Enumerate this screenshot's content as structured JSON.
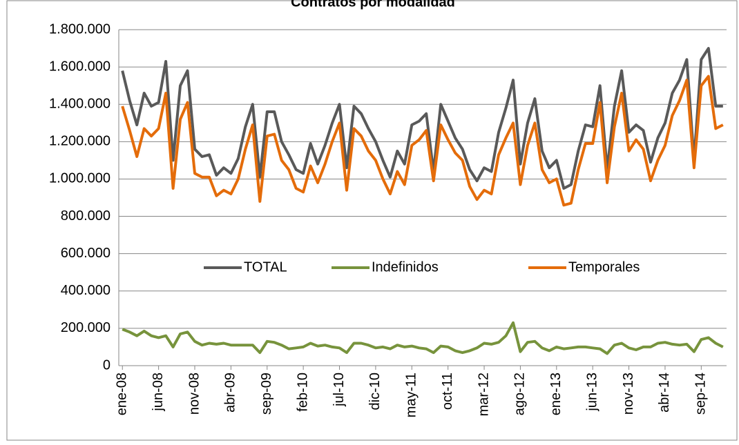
{
  "chart_data": {
    "type": "line",
    "title": "Contratos por modalidad",
    "categories": [
      "ene-08",
      null,
      null,
      null,
      null,
      "jun-08",
      null,
      null,
      null,
      null,
      "nov-08",
      null,
      null,
      null,
      null,
      "abr-09",
      null,
      null,
      null,
      null,
      "sep-09",
      null,
      null,
      null,
      null,
      "feb-10",
      null,
      null,
      null,
      null,
      "jul-10",
      null,
      null,
      null,
      null,
      "dic-10",
      null,
      null,
      null,
      null,
      "may-11",
      null,
      null,
      null,
      null,
      "oct-11",
      null,
      null,
      null,
      null,
      "mar-12",
      null,
      null,
      null,
      null,
      "ago-12",
      null,
      null,
      null,
      null,
      "ene-13",
      null,
      null,
      null,
      null,
      "jun-13",
      null,
      null,
      null,
      null,
      "nov-13",
      null,
      null,
      null,
      null,
      "abr-14",
      null,
      null,
      null,
      null,
      "sep-14",
      null,
      null,
      null
    ],
    "series": [
      {
        "name": "TOTAL",
        "color": "#595959",
        "values": [
          1580000,
          1420000,
          1290000,
          1460000,
          1390000,
          1410000,
          1630000,
          1100000,
          1500000,
          1580000,
          1160000,
          1120000,
          1130000,
          1020000,
          1060000,
          1030000,
          1110000,
          1280000,
          1400000,
          1010000,
          1360000,
          1360000,
          1200000,
          1130000,
          1050000,
          1030000,
          1190000,
          1080000,
          1180000,
          1300000,
          1400000,
          1060000,
          1390000,
          1350000,
          1270000,
          1200000,
          1100000,
          1010000,
          1150000,
          1080000,
          1290000,
          1310000,
          1350000,
          1040000,
          1400000,
          1310000,
          1220000,
          1160000,
          1050000,
          990000,
          1060000,
          1040000,
          1250000,
          1380000,
          1530000,
          1080000,
          1300000,
          1430000,
          1150000,
          1060000,
          1100000,
          950000,
          970000,
          1150000,
          1290000,
          1280000,
          1500000,
          1050000,
          1390000,
          1580000,
          1250000,
          1290000,
          1260000,
          1090000,
          1220000,
          1300000,
          1460000,
          1530000,
          1640000,
          1100000,
          1640000,
          1700000,
          1390000,
          1390000
        ]
      },
      {
        "name": "Indefinidos",
        "color": "#77933c",
        "values": [
          195000,
          180000,
          160000,
          185000,
          160000,
          150000,
          160000,
          100000,
          170000,
          180000,
          130000,
          110000,
          120000,
          115000,
          120000,
          110000,
          110000,
          110000,
          110000,
          70000,
          130000,
          125000,
          110000,
          90000,
          95000,
          100000,
          120000,
          105000,
          110000,
          100000,
          95000,
          70000,
          120000,
          120000,
          110000,
          95000,
          100000,
          90000,
          110000,
          100000,
          105000,
          95000,
          90000,
          70000,
          105000,
          100000,
          80000,
          70000,
          80000,
          95000,
          120000,
          115000,
          125000,
          160000,
          230000,
          75000,
          125000,
          130000,
          95000,
          80000,
          100000,
          90000,
          95000,
          100000,
          100000,
          95000,
          90000,
          65000,
          110000,
          120000,
          95000,
          85000,
          100000,
          100000,
          120000,
          125000,
          115000,
          110000,
          115000,
          75000,
          140000,
          150000,
          120000,
          100000
        ]
      },
      {
        "name": "Temporales",
        "color": "#e46c0a",
        "values": [
          1390000,
          1260000,
          1120000,
          1270000,
          1230000,
          1270000,
          1460000,
          950000,
          1320000,
          1410000,
          1030000,
          1010000,
          1010000,
          910000,
          940000,
          920000,
          1000000,
          1160000,
          1290000,
          880000,
          1230000,
          1240000,
          1100000,
          1050000,
          950000,
          930000,
          1070000,
          980000,
          1080000,
          1200000,
          1300000,
          940000,
          1270000,
          1230000,
          1150000,
          1100000,
          1000000,
          920000,
          1040000,
          970000,
          1180000,
          1210000,
          1260000,
          990000,
          1290000,
          1210000,
          1140000,
          1100000,
          960000,
          890000,
          940000,
          920000,
          1130000,
          1220000,
          1300000,
          970000,
          1180000,
          1300000,
          1050000,
          980000,
          1000000,
          860000,
          870000,
          1050000,
          1190000,
          1190000,
          1410000,
          980000,
          1280000,
          1460000,
          1150000,
          1210000,
          1160000,
          990000,
          1100000,
          1180000,
          1340000,
          1420000,
          1530000,
          1060000,
          1500000,
          1550000,
          1270000,
          1290000
        ]
      }
    ],
    "ylim": [
      0,
      1800000
    ],
    "yticks": [
      0,
      {
        "value": 200000,
        "label": "200.000"
      },
      {
        "value": 400000,
        "label": "400.000"
      },
      {
        "value": 600000,
        "label": "600.000"
      },
      {
        "value": 800000,
        "label": "800.000"
      },
      {
        "value": 1000000,
        "label": "1.000.000"
      },
      {
        "value": 1200000,
        "label": "1.200.000"
      },
      {
        "value": 1400000,
        "label": "1.400.000"
      },
      {
        "value": 1600000,
        "label": "1.600.000"
      },
      {
        "value": 1800000,
        "label": "1.800.000"
      }
    ],
    "grid": true,
    "legend": "center"
  }
}
